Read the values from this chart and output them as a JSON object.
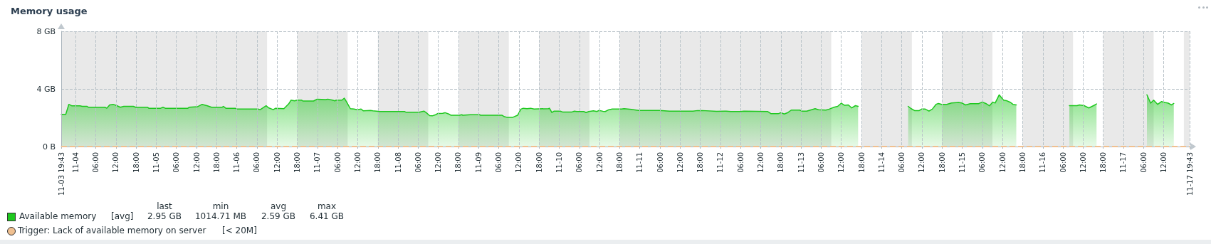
{
  "chart_data": {
    "type": "area",
    "title": "Memory usage",
    "xlim": [
      "--11-03T19:43",
      "--11-17T19:43"
    ],
    "xticks": [
      {
        "value": "--11-03T19:43",
        "label": "11-03 19:43"
      },
      {
        "value": "--11-04T00:00",
        "label": "11-04"
      },
      {
        "value": "--11-04T06:00",
        "label": "06:00"
      },
      {
        "value": "--11-04T12:00",
        "label": "12:00"
      },
      {
        "value": "--11-04T18:00",
        "label": "18:00"
      },
      {
        "value": "--11-05T00:00",
        "label": "11-05"
      },
      {
        "value": "--11-05T06:00",
        "label": "06:00"
      },
      {
        "value": "--11-05T12:00",
        "label": "12:00"
      },
      {
        "value": "--11-05T18:00",
        "label": "18:00"
      },
      {
        "value": "--11-06T00:00",
        "label": "11-06"
      },
      {
        "value": "--11-06T06:00",
        "label": "06:00"
      },
      {
        "value": "--11-06T12:00",
        "label": "12:00"
      },
      {
        "value": "--11-06T18:00",
        "label": "18:00"
      },
      {
        "value": "--11-07T00:00",
        "label": "11-07"
      },
      {
        "value": "--11-07T06:00",
        "label": "06:00"
      },
      {
        "value": "--11-07T12:00",
        "label": "12:00"
      },
      {
        "value": "--11-07T18:00",
        "label": "18:00"
      },
      {
        "value": "--11-08T00:00",
        "label": "11-08"
      },
      {
        "value": "--11-08T06:00",
        "label": "06:00"
      },
      {
        "value": "--11-08T12:00",
        "label": "12:00"
      },
      {
        "value": "--11-08T18:00",
        "label": "18:00"
      },
      {
        "value": "--11-09T00:00",
        "label": "11-09"
      },
      {
        "value": "--11-09T06:00",
        "label": "06:00"
      },
      {
        "value": "--11-09T12:00",
        "label": "12:00"
      },
      {
        "value": "--11-09T18:00",
        "label": "18:00"
      },
      {
        "value": "--11-10T00:00",
        "label": "11-10"
      },
      {
        "value": "--11-10T06:00",
        "label": "06:00"
      },
      {
        "value": "--11-10T12:00",
        "label": "12:00"
      },
      {
        "value": "--11-10T18:00",
        "label": "18:00"
      },
      {
        "value": "--11-11T00:00",
        "label": "11-11"
      },
      {
        "value": "--11-11T06:00",
        "label": "06:00"
      },
      {
        "value": "--11-11T12:00",
        "label": "12:00"
      },
      {
        "value": "--11-11T18:00",
        "label": "18:00"
      },
      {
        "value": "--11-12T00:00",
        "label": "11-12"
      },
      {
        "value": "--11-12T06:00",
        "label": "06:00"
      },
      {
        "value": "--11-12T12:00",
        "label": "12:00"
      },
      {
        "value": "--11-12T18:00",
        "label": "18:00"
      },
      {
        "value": "--11-13T00:00",
        "label": "11-13"
      },
      {
        "value": "--11-13T06:00",
        "label": "06:00"
      },
      {
        "value": "--11-13T12:00",
        "label": "12:00"
      },
      {
        "value": "--11-13T18:00",
        "label": "18:00"
      },
      {
        "value": "--11-14T00:00",
        "label": "11-14"
      },
      {
        "value": "--11-14T06:00",
        "label": "06:00"
      },
      {
        "value": "--11-14T12:00",
        "label": "12:00"
      },
      {
        "value": "--11-14T18:00",
        "label": "18:00"
      },
      {
        "value": "--11-15T00:00",
        "label": "11-15"
      },
      {
        "value": "--11-15T06:00",
        "label": "06:00"
      },
      {
        "value": "--11-15T12:00",
        "label": "12:00"
      },
      {
        "value": "--11-15T18:00",
        "label": "18:00"
      },
      {
        "value": "--11-16T00:00",
        "label": "11-16"
      },
      {
        "value": "--11-16T06:00",
        "label": "06:00"
      },
      {
        "value": "--11-16T12:00",
        "label": "12:00"
      },
      {
        "value": "--11-16T18:00",
        "label": "18:00"
      },
      {
        "value": "--11-17T00:00",
        "label": "11-17"
      },
      {
        "value": "--11-17T06:00",
        "label": "06:00"
      },
      {
        "value": "--11-17T12:00",
        "label": "12:00"
      },
      {
        "value": "--11-17T19:43",
        "label": "11-17 19:43"
      }
    ],
    "ylim": [
      0,
      8
    ],
    "yticks": [
      {
        "value": 0,
        "label": "0 B"
      },
      {
        "value": 4,
        "label": "4 GB"
      },
      {
        "value": 8,
        "label": "8 GB"
      }
    ],
    "grid": true,
    "legend": "bottom left",
    "marker": "none",
    "line_style": "solid",
    "series": [
      {
        "name": "Available memory",
        "color": "#1ec81e",
        "x": [
          "--11-03T19:43",
          "--11-03T21:04",
          "--11-03T21:59",
          "--11-03T22:50",
          "--11-04T01:18",
          "--11-04T02:00",
          "--11-04T03:25",
          "--11-04T03:46",
          "--11-04T08:43",
          "--11-04T09:17",
          "--11-04T10:08",
          "--11-04T11:11",
          "--11-04T12:15",
          "--11-04T13:18",
          "--11-04T14:22",
          "--11-04T17:11",
          "--11-04T17:53",
          "--11-04T21:26",
          "--11-04T21:47",
          "--11-05T01:19",
          "--11-05T02:01",
          "--11-05T02:43",
          "--11-05T09:26",
          "--11-05T09:47",
          "--11-05T12:15",
          "--11-05T13:40",
          "--11-05T15:05",
          "--11-05T16:29",
          "--11-05T19:40",
          "--11-05T20:01",
          "--11-05T20:44",
          "--11-05T23:33",
          "--11-05T23:55",
          "--11-06T06:16",
          "--11-06T06:58",
          "--11-06T08:44",
          "--11-06T09:26",
          "--11-06T10:51",
          "--11-06T11:33",
          "--11-06T14:01",
          "--11-06T15:26",
          "--11-06T16:08",
          "--11-06T17:12",
          "--11-06T17:55",
          "--11-06T19:19",
          "--11-06T19:40",
          "--11-06T22:51",
          "--11-06T23:54",
          "--11-07T02:24",
          "--11-07T03:06",
          "--11-07T04:30",
          "--11-07T05:12",
          "--11-07T05:30",
          "--11-07T07:18",
          "--11-07T08:00",
          "--11-07T08:42",
          "--11-07T09:48",
          "--11-07T10:54",
          "--11-07T11:54",
          "--11-07T13:00",
          "--11-07T13:42",
          "--11-07T15:48",
          "--11-07T16:30",
          "--11-07T18:36",
          "--11-08T02:00",
          "--11-08T02:24",
          "--11-08T06:18",
          "--11-08T07:42",
          "--11-08T08:24",
          "--11-08T09:24",
          "--11-08T10:12",
          "--11-08T11:12",
          "--11-08T11:54",
          "--11-08T13:18",
          "--11-08T14:00",
          "--11-08T15:06",
          "--11-08T15:48",
          "--11-08T18:18",
          "--11-08T19:00",
          "--11-08T19:18",
          "--11-08T21:30",
          "--11-09T00:18",
          "--11-09T00:36",
          "--11-09T07:00",
          "--11-09T07:42",
          "--11-09T08:24",
          "--11-09T10:12",
          "--11-09T11:36",
          "--11-09T12:36",
          "--11-09T13:18",
          "--11-09T14:24",
          "--11-09T15:30",
          "--11-09T16:30",
          "--11-09T20:48",
          "--11-09T21:06",
          "--11-09T21:48",
          "--11-09T22:30",
          "--11-10T00:18",
          "--11-10T01:00",
          "--11-10T03:48",
          "--11-10T04:30",
          "--11-10T05:12",
          "--11-10T07:18",
          "--11-10T08:00",
          "--11-10T08:48",
          "--11-10T10:12",
          "--11-10T11:12",
          "--11-10T11:54",
          "--11-10T13:00",
          "--11-10T13:42",
          "--11-10T14:48",
          "--11-10T15:48",
          "--11-10T18:36",
          "--11-10T19:18",
          "--11-10T21:30",
          "--11-10T23:36",
          "--11-11T01:42",
          "--11-11T05:54",
          "--11-11T08:48",
          "--11-11T10:54",
          "--11-11T15:48",
          "--11-11T17:12",
          "--11-11T18:36",
          "--11-11T22:54",
          "--11-12T01:42",
          "--11-12T03:06",
          "--11-12T05:54",
          "--11-12T07:00",
          "--11-12T14:06",
          "--11-12T15:06",
          "--11-12T17:12",
          "--11-12T18:00",
          "--11-12T19:00",
          "--11-12T20:06",
          "--11-12T21:06",
          "--11-12T23:36",
          "--11-13T00:18",
          "--11-13T01:42",
          "--11-13T04:12",
          "--11-13T05:12",
          "--11-13T07:24",
          "--11-13T08:24",
          "--11-13T09:48",
          "--11-13T10:54",
          "--11-13T12:00",
          "--11-13T13:00",
          "--11-13T14:06",
          "--11-13T15:06",
          "--11-13T16:12",
          "--11-13T17:00",
          "--11-14T00:00",
          "--11-14T07:54",
          "--11-14T08:48",
          "--11-14T09:48",
          "--11-14T11:12",
          "--11-14T11:54",
          "--11-14T13:00",
          "--11-14T14:06",
          "--11-14T15:06",
          "--11-14T16:12",
          "--11-14T16:54",
          "--11-14T17:54",
          "--11-14T19:24",
          "--11-14T20:48",
          "--11-14T22:54",
          "--11-14T23:54",
          "--11-15T01:00",
          "--11-15T02:24",
          "--11-15T04:54",
          "--11-15T06:00",
          "--11-15T07:00",
          "--11-15T08:06",
          "--11-15T09:06",
          "--11-15T09:48",
          "--11-15T11:00",
          "--11-15T12:18",
          "--11-15T13:24",
          "--11-15T14:24",
          "--11-15T15:06",
          "--11-15T16:06",
          "--11-16T00:00",
          "--11-16T07:54",
          "--11-16T10:12",
          "--11-16T10:54",
          "--11-16T12:18",
          "--11-16T13:42",
          "--11-16T15:06",
          "--11-16T16:00",
          "--11-16T23:00",
          "--11-17T07:00",
          "--11-17T08:06",
          "--11-17T09:00",
          "--11-17T10:12",
          "--11-17T11:18",
          "--11-17T12:18",
          "--11-17T13:24",
          "--11-17T14:18",
          "--11-17T15:00"
        ],
        "values": [
          2.23,
          2.23,
          2.93,
          2.83,
          2.83,
          2.79,
          2.79,
          2.73,
          2.73,
          2.66,
          2.89,
          2.93,
          2.84,
          2.73,
          2.79,
          2.79,
          2.73,
          2.73,
          2.66,
          2.66,
          2.73,
          2.66,
          2.66,
          2.73,
          2.76,
          2.93,
          2.84,
          2.73,
          2.73,
          2.79,
          2.66,
          2.66,
          2.61,
          2.61,
          2.56,
          2.83,
          2.69,
          2.56,
          2.66,
          2.63,
          2.96,
          3.22,
          3.17,
          3.22,
          3.22,
          3.16,
          3.16,
          3.29,
          3.26,
          3.29,
          3.22,
          3.17,
          3.22,
          3.22,
          3.36,
          3.09,
          2.63,
          2.6,
          2.56,
          2.6,
          2.48,
          2.51,
          2.48,
          2.43,
          2.43,
          2.38,
          2.38,
          2.46,
          2.35,
          2.15,
          2.13,
          2.21,
          2.3,
          2.31,
          2.35,
          2.26,
          2.17,
          2.17,
          2.21,
          2.17,
          2.21,
          2.21,
          2.17,
          2.17,
          2.07,
          2.03,
          2.03,
          2.17,
          2.6,
          2.66,
          2.63,
          2.66,
          2.61,
          2.63,
          2.66,
          2.36,
          2.46,
          2.46,
          2.4,
          2.4,
          2.46,
          2.43,
          2.43,
          2.36,
          2.43,
          2.48,
          2.43,
          2.51,
          2.45,
          2.43,
          2.56,
          2.6,
          2.6,
          2.63,
          2.58,
          2.51,
          2.51,
          2.51,
          2.46,
          2.46,
          2.46,
          2.5,
          2.5,
          2.45,
          2.46,
          2.43,
          2.43,
          2.46,
          2.43,
          2.28,
          2.28,
          2.35,
          2.26,
          2.36,
          2.53,
          2.53,
          2.46,
          2.46,
          2.63,
          2.56,
          2.53,
          2.6,
          2.73,
          2.79,
          3.01,
          2.86,
          2.89,
          2.68,
          2.84,
          2.79,
          null,
          2.79,
          2.63,
          2.5,
          2.5,
          2.6,
          2.6,
          2.46,
          2.6,
          2.93,
          2.99,
          2.93,
          2.93,
          3.02,
          3.06,
          3.02,
          2.89,
          2.98,
          2.98,
          3.09,
          2.99,
          2.83,
          3.09,
          3.02,
          3.59,
          3.22,
          3.17,
          3.06,
          2.93,
          2.89,
          null,
          2.84,
          2.84,
          2.89,
          2.84,
          2.68,
          2.84,
          2.96,
          null,
          3.59,
          3.01,
          3.22,
          2.93,
          3.12,
          3.06,
          3.01,
          2.89,
          2.99
        ]
      }
    ],
    "ref_lines": [
      {
        "axis": "y",
        "value": 0.02,
        "label": "Trigger: Lack of available memory on server",
        "color": "#f0c090",
        "line_style": "dashed"
      }
    ],
    "bands": [
      {
        "axis": "x",
        "from": "--11-03T19:43",
        "to": "--11-06T09:00",
        "color": "#e9e9e9"
      },
      {
        "axis": "x",
        "from": "--11-06T18:00",
        "to": "--11-07T09:00",
        "color": "#e9e9e9"
      },
      {
        "axis": "x",
        "from": "--11-07T18:00",
        "to": "--11-08T09:00",
        "color": "#e9e9e9"
      },
      {
        "axis": "x",
        "from": "--11-08T18:00",
        "to": "--11-09T09:00",
        "color": "#e9e9e9"
      },
      {
        "axis": "x",
        "from": "--11-09T18:00",
        "to": "--11-10T09:00",
        "color": "#e9e9e9"
      },
      {
        "axis": "x",
        "from": "--11-10T18:00",
        "to": "--11-13T09:00",
        "color": "#e9e9e9"
      },
      {
        "axis": "x",
        "from": "--11-13T18:00",
        "to": "--11-14T09:00",
        "color": "#e9e9e9"
      },
      {
        "axis": "x",
        "from": "--11-14T18:00",
        "to": "--11-15T09:00",
        "color": "#e9e9e9"
      },
      {
        "axis": "x",
        "from": "--11-15T18:00",
        "to": "--11-16T09:00",
        "color": "#e9e9e9"
      },
      {
        "axis": "x",
        "from": "--11-16T18:00",
        "to": "--11-17T09:00",
        "color": "#e9e9e9"
      },
      {
        "axis": "x",
        "from": "--11-17T18:00",
        "to": "--11-17T19:43",
        "color": "#e9e9e9"
      }
    ],
    "annotations": [
      "[avg]",
      "last",
      "min",
      "avg",
      "max",
      "2.95 GB",
      "1014.71 MB",
      "2.59 GB",
      "6.41 GB",
      "[< 20M]"
    ]
  }
}
